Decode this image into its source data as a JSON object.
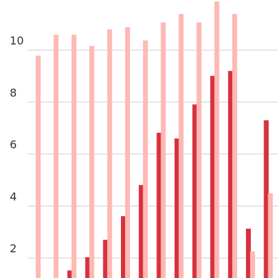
{
  "chart_data": {
    "type": "bar",
    "series": [
      {
        "color": "#d7313e",
        "values": [
          null,
          null,
          1.52,
          2.03,
          2.7,
          3.61,
          4.81,
          6.82,
          6.6,
          7.91,
          9.01,
          9.2,
          3.13,
          7.3
        ]
      },
      {
        "color": "#fdb9b3",
        "values": [
          9.79,
          10.59,
          10.59,
          10.16,
          10.8,
          10.88,
          10.37,
          11.07,
          11.39,
          11.07,
          11.87,
          11.39,
          2.25,
          4.49
        ]
      }
    ],
    "ylim": [
      1.23,
      11.93
    ],
    "yticks": [
      2,
      4,
      6,
      8,
      10
    ],
    "grid": true
  }
}
